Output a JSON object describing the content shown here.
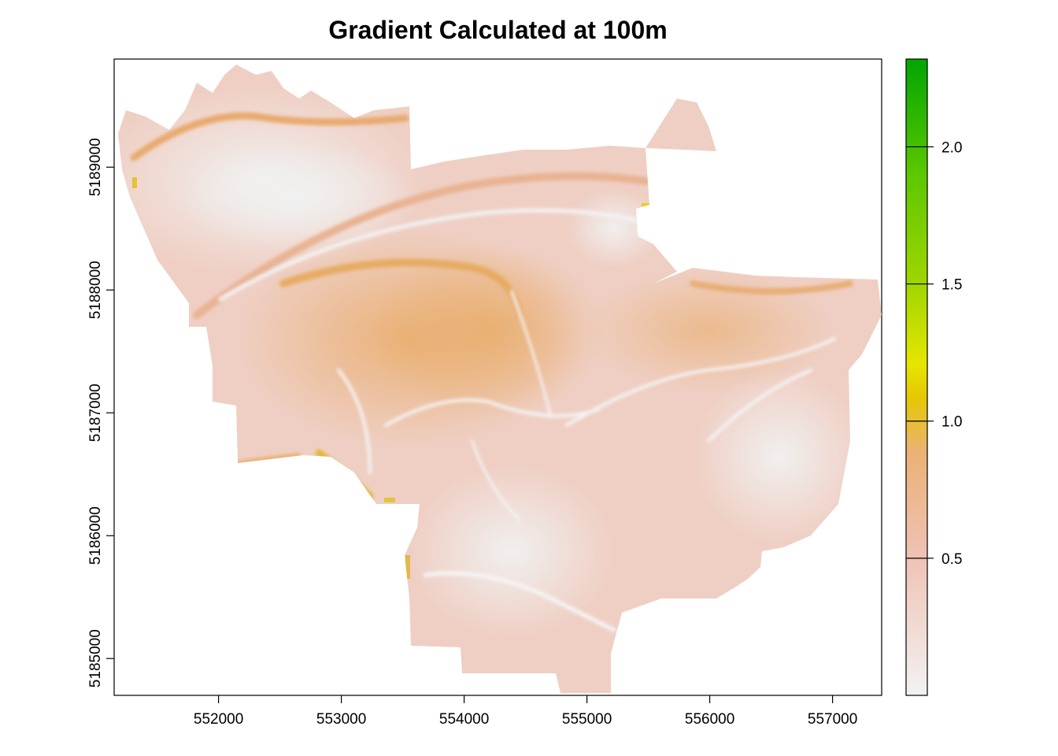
{
  "title": "Gradient Calculated at 100m",
  "chart_data": {
    "type": "heatmap",
    "title": "Gradient Calculated at 100m",
    "xlabel": "",
    "ylabel": "",
    "xlim": [
      551150,
      557400
    ],
    "ylim": [
      5184700,
      5189880
    ],
    "x_ticks": [
      552000,
      553000,
      554000,
      555000,
      556000,
      557000
    ],
    "y_ticks": [
      5185000,
      5186000,
      5187000,
      5188000,
      5189000
    ],
    "x_tick_labels": [
      "552000",
      "553000",
      "554000",
      "555000",
      "556000",
      "557000"
    ],
    "y_tick_labels": [
      "5185000",
      "5186000",
      "5187000",
      "5188000",
      "5189000"
    ],
    "legend": {
      "placement": "right",
      "range": [
        0.0,
        2.32
      ],
      "ticks": [
        0.5,
        1.0,
        1.5,
        2.0
      ],
      "tick_labels": [
        "0.5",
        "1.0",
        "1.5",
        "2.0"
      ],
      "colors": [
        "#F2F2F2",
        "#EFC2B3",
        "#ECB176",
        "#E6C800",
        "#E6E600",
        "#9ED500",
        "#5CC700",
        "#00A600"
      ]
    },
    "no_data_color": "#FFFFFF"
  }
}
